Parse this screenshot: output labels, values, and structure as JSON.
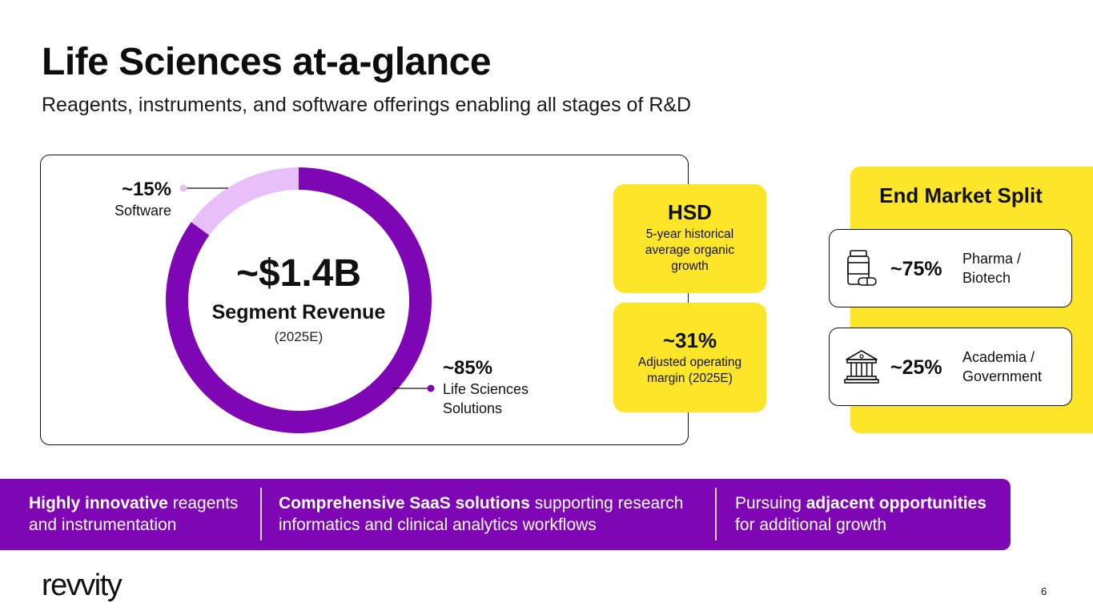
{
  "slide": {
    "title": "Life Sciences at-a-glance",
    "subtitle": "Reagents, instruments, and software offerings enabling all stages of R&D",
    "page_number": "6",
    "logo_text": "revvity"
  },
  "chart_data": {
    "type": "pie",
    "subtype": "donut",
    "center": {
      "value": "~$1.4B",
      "label": "Segment Revenue",
      "period": "(2025E)"
    },
    "slices": [
      {
        "name": "Software",
        "label": "~15%",
        "value": 15,
        "color": "#e8bff8"
      },
      {
        "name_line1": "Life Sciences",
        "name_line2": "Solutions",
        "label": "~85%",
        "value": 85,
        "color": "#7e06b5"
      }
    ]
  },
  "kpis": {
    "growth": {
      "value": "HSD",
      "line1": "5-year historical",
      "line2": "average organic",
      "line3": "growth"
    },
    "margin": {
      "value": "~31%",
      "line1": "Adjusted operating",
      "line2": "margin (2025E)"
    }
  },
  "end_market": {
    "title": "End Market Split",
    "items": [
      {
        "pct": "~75%",
        "name_line1": "Pharma /",
        "name_line2": "Biotech",
        "icon": "medicine-bottle-icon"
      },
      {
        "pct": "~25%",
        "name_line1": "Academia /",
        "name_line2": "Government",
        "icon": "institution-building-icon"
      }
    ]
  },
  "banner": {
    "bg_color": "#7e06b5",
    "items": [
      {
        "bold": "Highly innovative",
        "rest": " reagents and instrumentation"
      },
      {
        "bold": "Comprehensive SaaS solutions",
        "rest": " supporting research informatics and clinical analytics workflows"
      },
      {
        "pre": "Pursuing ",
        "bold": "adjacent opportunities",
        "rest": " for additional growth"
      }
    ]
  },
  "colors": {
    "accent_yellow": "#fde62a",
    "brand_purple": "#7e06b5",
    "light_purple": "#e8bff8"
  }
}
